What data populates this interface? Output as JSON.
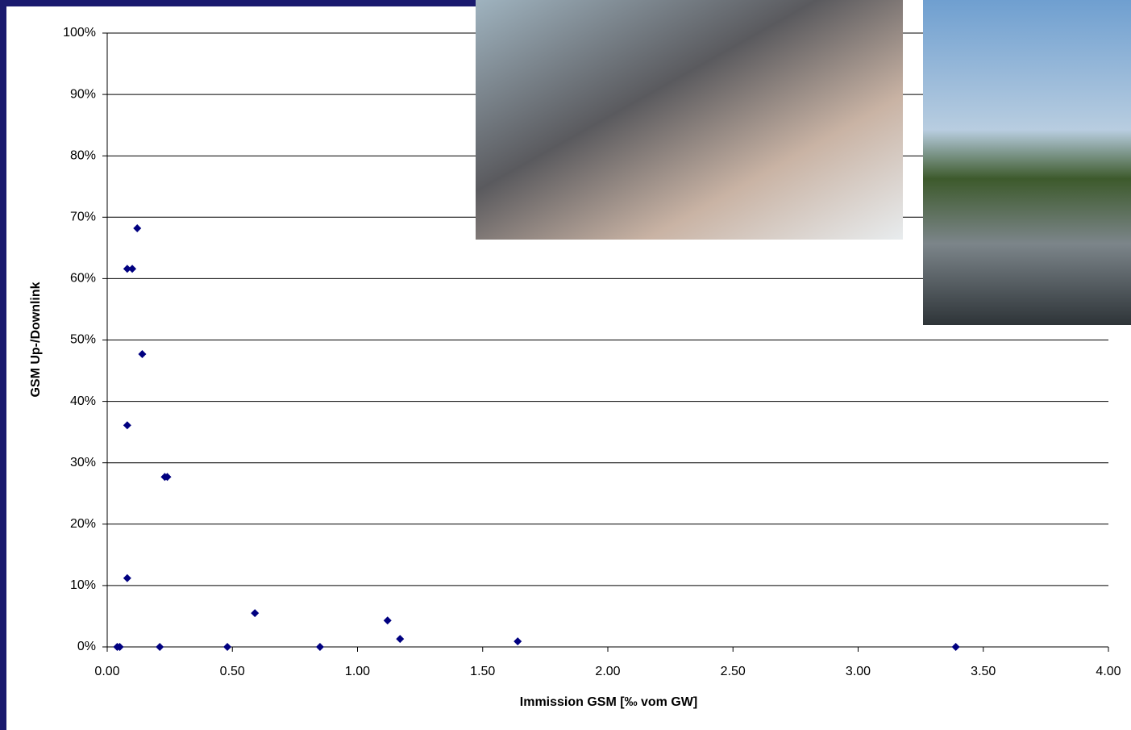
{
  "chart_data": {
    "type": "scatter",
    "x_label": "Immission GSM [‰ vom GW]",
    "y_label": "GSM Up-/Downlink",
    "series": [
      {
        "color": "#000080",
        "x": [
          0.04,
          0.05,
          0.12,
          0.08,
          0.1,
          0.14,
          0.08,
          0.23,
          0.24,
          0.08,
          0.21,
          0.48,
          0.59,
          0.85,
          1.12,
          1.17,
          1.64,
          3.39
        ],
        "values": [
          0,
          0,
          68.2,
          61.6,
          61.6,
          47.7,
          36.1,
          27.7,
          27.7,
          11.2,
          0,
          0,
          5.5,
          0,
          4.3,
          1.3,
          0.9,
          0
        ]
      }
    ],
    "xlim": [
      0,
      4
    ],
    "xticks": [
      {
        "value": 0,
        "label": "0.00"
      },
      {
        "value": 0.5,
        "label": "0.50"
      },
      {
        "value": 1,
        "label": "1.00"
      },
      {
        "value": 1.5,
        "label": "1.50"
      },
      {
        "value": 2,
        "label": "2.00"
      },
      {
        "value": 2.5,
        "label": "2.50"
      },
      {
        "value": 3,
        "label": "3.00"
      },
      {
        "value": 3.5,
        "label": "3.50"
      },
      {
        "value": 4,
        "label": "4.00"
      }
    ],
    "ylim": [
      0,
      100
    ],
    "yticks": [
      {
        "value": 0,
        "label": "0%"
      },
      {
        "value": 10,
        "label": "10%"
      },
      {
        "value": 20,
        "label": "20%"
      },
      {
        "value": 30,
        "label": "30%"
      },
      {
        "value": 40,
        "label": "40%"
      },
      {
        "value": 50,
        "label": "50%"
      },
      {
        "value": 60,
        "label": "60%"
      },
      {
        "value": 70,
        "label": "70%"
      },
      {
        "value": 80,
        "label": "80%"
      },
      {
        "value": 90,
        "label": "90%"
      },
      {
        "value": 100,
        "label": "100%"
      }
    ],
    "grid": true
  }
}
